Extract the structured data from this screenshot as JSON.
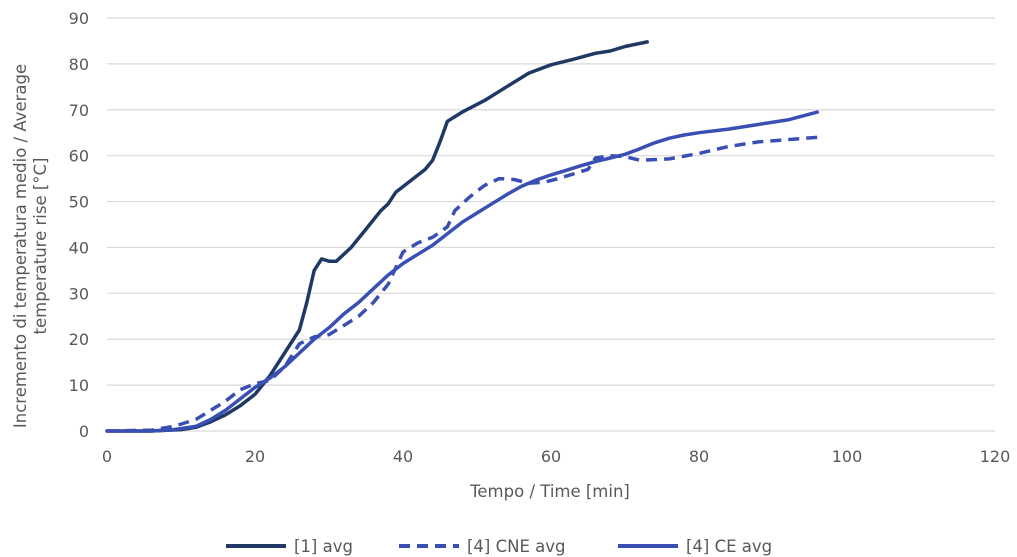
{
  "chart_data": {
    "type": "line",
    "title": "",
    "xlabel": "Tempo / Time  [min]",
    "ylabel_lines": [
      "Incremento di temperatura medio / Average",
      "temperature rise  [°C]"
    ],
    "xlim": [
      0,
      120
    ],
    "ylim": [
      0,
      90
    ],
    "x_ticks": [
      0,
      20,
      40,
      60,
      80,
      100,
      120
    ],
    "y_ticks": [
      0,
      10,
      20,
      30,
      40,
      50,
      60,
      70,
      80,
      90
    ],
    "grid": "horizontal",
    "legend_position": "bottom",
    "series": [
      {
        "name": "[1] avg",
        "color": "#1f3864",
        "dash": "solid",
        "points": [
          [
            0,
            0
          ],
          [
            6,
            0
          ],
          [
            10,
            0.3
          ],
          [
            12,
            0.8
          ],
          [
            14,
            2
          ],
          [
            16,
            3.5
          ],
          [
            18,
            5.5
          ],
          [
            20,
            8
          ],
          [
            22,
            12
          ],
          [
            24,
            17
          ],
          [
            26,
            22
          ],
          [
            27,
            28
          ],
          [
            28,
            35
          ],
          [
            29,
            37.5
          ],
          [
            30,
            37
          ],
          [
            31,
            37
          ],
          [
            33,
            40
          ],
          [
            35,
            44
          ],
          [
            37,
            48
          ],
          [
            38,
            49.5
          ],
          [
            39,
            52
          ],
          [
            41,
            54.5
          ],
          [
            43,
            57
          ],
          [
            44,
            59
          ],
          [
            45,
            63
          ],
          [
            46,
            67.5
          ],
          [
            48,
            69.5
          ],
          [
            51,
            72
          ],
          [
            54,
            75
          ],
          [
            57,
            78
          ],
          [
            60,
            79.8
          ],
          [
            63,
            81
          ],
          [
            66,
            82.3
          ],
          [
            68,
            82.8
          ],
          [
            70,
            83.8
          ],
          [
            73,
            84.8
          ]
        ]
      },
      {
        "name": "[4] CNE avg",
        "color": "#3a4fb4",
        "dash": "dashed",
        "points": [
          [
            0,
            0
          ],
          [
            6,
            0.2
          ],
          [
            9,
            1
          ],
          [
            12,
            2.5
          ],
          [
            14,
            4.5
          ],
          [
            16,
            6.5
          ],
          [
            18,
            9
          ],
          [
            20,
            10.3
          ],
          [
            22,
            11
          ],
          [
            24,
            14
          ],
          [
            26,
            19
          ],
          [
            28,
            20.5
          ],
          [
            30,
            21
          ],
          [
            32,
            23
          ],
          [
            34,
            25
          ],
          [
            36,
            28
          ],
          [
            38,
            32
          ],
          [
            40,
            39
          ],
          [
            42,
            41
          ],
          [
            44,
            42.2
          ],
          [
            46,
            44.5
          ],
          [
            47,
            48
          ],
          [
            49,
            51
          ],
          [
            51,
            53.5
          ],
          [
            53,
            55
          ],
          [
            55,
            54.8
          ],
          [
            57,
            54
          ],
          [
            59,
            54.2
          ],
          [
            61,
            55
          ],
          [
            63,
            56
          ],
          [
            65,
            57
          ],
          [
            66,
            59.5
          ],
          [
            68,
            60
          ],
          [
            70,
            59.8
          ],
          [
            72,
            59
          ],
          [
            76,
            59.3
          ],
          [
            80,
            60.5
          ],
          [
            84,
            62
          ],
          [
            88,
            63
          ],
          [
            92,
            63.5
          ],
          [
            96,
            64
          ]
        ]
      },
      {
        "name": "[4] CE avg",
        "color": "#3a4fb4",
        "dash": "solid",
        "points": [
          [
            0,
            0
          ],
          [
            6,
            0
          ],
          [
            9,
            0.3
          ],
          [
            12,
            1
          ],
          [
            14,
            2.5
          ],
          [
            16,
            4.5
          ],
          [
            18,
            7
          ],
          [
            20,
            9.5
          ],
          [
            22,
            11.5
          ],
          [
            24,
            14
          ],
          [
            26,
            17
          ],
          [
            28,
            20
          ],
          [
            30,
            22.5
          ],
          [
            32,
            25.5
          ],
          [
            34,
            28
          ],
          [
            36,
            31
          ],
          [
            38,
            34
          ],
          [
            40,
            36.5
          ],
          [
            42,
            38.5
          ],
          [
            44,
            40.5
          ],
          [
            46,
            43
          ],
          [
            48,
            45.5
          ],
          [
            50,
            47.5
          ],
          [
            52,
            49.5
          ],
          [
            54,
            51.5
          ],
          [
            56,
            53.3
          ],
          [
            58,
            54.7
          ],
          [
            60,
            55.8
          ],
          [
            62,
            56.8
          ],
          [
            64,
            57.8
          ],
          [
            66,
            58.7
          ],
          [
            68,
            59.5
          ],
          [
            70,
            60.3
          ],
          [
            72,
            61.5
          ],
          [
            74,
            62.8
          ],
          [
            76,
            63.8
          ],
          [
            78,
            64.5
          ],
          [
            80,
            65
          ],
          [
            84,
            65.8
          ],
          [
            88,
            66.8
          ],
          [
            92,
            67.8
          ],
          [
            96,
            69.5
          ]
        ]
      }
    ]
  }
}
